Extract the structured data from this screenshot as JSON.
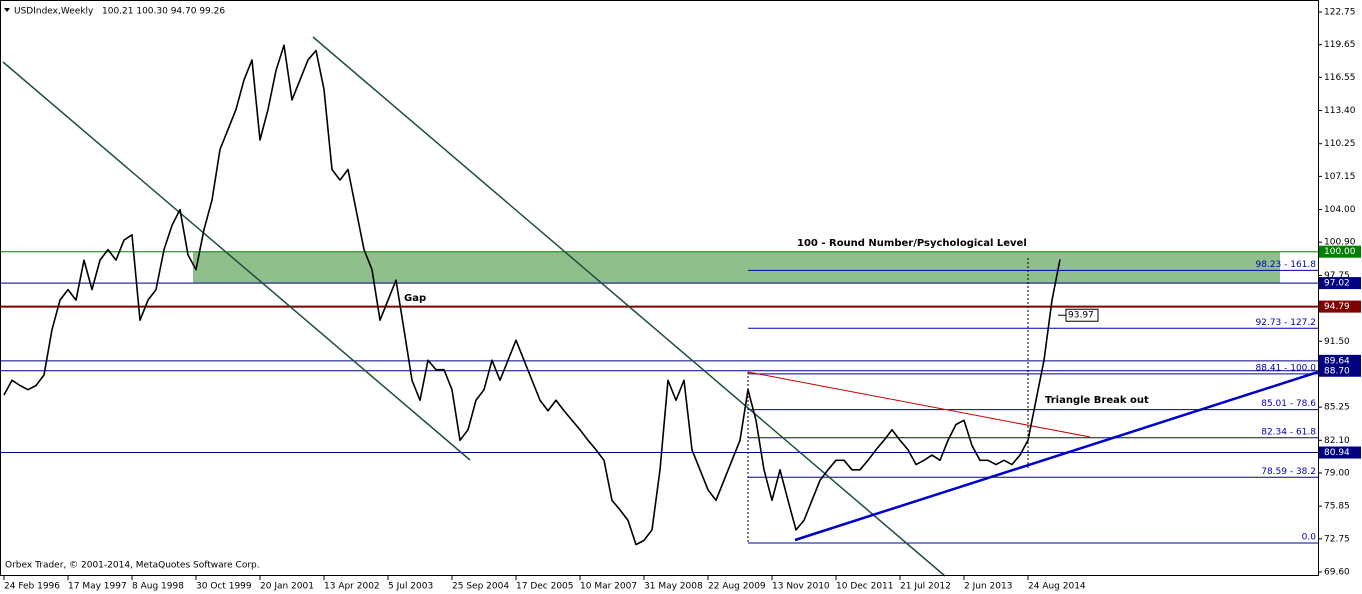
{
  "chart_data": {
    "type": "line",
    "header_title": "USDIndex,Weekly",
    "header_prices": "100.21 100.30 94.70 99.26",
    "footer": "Orbex Trader, © 2001-2014, MetaQuotes Software Corp.",
    "color": "#000000",
    "categories": [
      "24 Feb 1996",
      null,
      null,
      null,
      null,
      null,
      null,
      null,
      "17 May 1997",
      null,
      null,
      null,
      null,
      null,
      null,
      null,
      "8 Aug 1998",
      null,
      null,
      null,
      null,
      null,
      null,
      null,
      "30 Oct 1999",
      null,
      null,
      null,
      null,
      null,
      null,
      null,
      "20 Jan 2001",
      null,
      null,
      null,
      null,
      null,
      null,
      null,
      "13 Apr 2002",
      null,
      null,
      null,
      null,
      null,
      null,
      null,
      "5 Jul 2003",
      null,
      null,
      null,
      null,
      null,
      null,
      null,
      "25 Sep 2004",
      null,
      null,
      null,
      null,
      null,
      null,
      null,
      "17 Dec 2005",
      null,
      null,
      null,
      null,
      null,
      null,
      null,
      "10 Mar 2007",
      null,
      null,
      null,
      null,
      null,
      null,
      null,
      "31 May 2008",
      null,
      null,
      null,
      null,
      null,
      null,
      null,
      "22 Aug 2009",
      null,
      null,
      null,
      null,
      null,
      null,
      null,
      "13 Nov 2010",
      null,
      null,
      null,
      null,
      null,
      null,
      null,
      "10 Dec 2011",
      null,
      null,
      null,
      null,
      null,
      null,
      null,
      "21 Jul 2012",
      null,
      null,
      null,
      null,
      null,
      null,
      null,
      "2 Jun 2013",
      null,
      null,
      null,
      null,
      null,
      null,
      null,
      "24 Aug 2014",
      null,
      null,
      null,
      null
    ],
    "values": [
      86.4,
      87.8,
      87.3,
      86.9,
      87.3,
      88.3,
      92.6,
      95.4,
      96.4,
      95.4,
      99.2,
      96.4,
      99.2,
      100.2,
      99.2,
      101.1,
      101.6,
      93.5,
      95.4,
      96.4,
      100.2,
      102.5,
      104.0,
      99.7,
      98.3,
      102.1,
      104.9,
      109.7,
      111.6,
      113.5,
      116.3,
      118.2,
      110.6,
      113.5,
      117.2,
      119.6,
      114.4,
      116.3,
      118.2,
      119.1,
      115.4,
      107.8,
      106.8,
      107.8,
      104.0,
      100.2,
      98.3,
      93.5,
      95.4,
      97.3,
      92.6,
      87.8,
      85.9,
      89.7,
      88.8,
      88.8,
      86.9,
      82.1,
      83.1,
      85.9,
      86.9,
      89.7,
      87.8,
      89.7,
      91.6,
      89.7,
      87.8,
      85.9,
      84.9,
      85.9,
      84.9,
      84.0,
      83.1,
      82.1,
      81.2,
      80.2,
      76.4,
      75.5,
      74.5,
      72.2,
      72.6,
      73.6,
      79.3,
      87.8,
      85.9,
      87.8,
      81.2,
      79.3,
      77.4,
      76.4,
      78.3,
      80.2,
      82.1,
      86.9,
      84.0,
      79.3,
      76.4,
      79.3,
      76.4,
      73.6,
      74.5,
      76.4,
      78.3,
      79.3,
      80.2,
      80.2,
      79.3,
      79.3,
      80.2,
      81.2,
      82.1,
      83.1,
      82.1,
      81.2,
      79.8,
      80.2,
      80.7,
      80.2,
      82.1,
      83.6,
      84.0,
      81.6,
      80.2,
      80.2,
      79.8,
      80.2,
      79.8,
      80.7,
      82.1,
      85.9,
      89.7,
      95.4,
      99.26
    ],
    "ylim": [
      69.6,
      122.75
    ],
    "yticks": [
      122.75,
      119.65,
      116.55,
      {
        "value": 113.4,
        "label": "113.40"
      },
      110.25,
      107.15,
      {
        "value": 104,
        "label": "104.00"
      },
      {
        "value": 100.9,
        "label": "100.90"
      },
      97.75,
      {
        "value": 91.5,
        "label": "91.50"
      },
      85.25,
      {
        "value": 82.1,
        "label": "82.10"
      },
      {
        "value": 79,
        "label": "79.00"
      },
      75.85,
      72.75,
      {
        "value": 69.6,
        "label": "69.60"
      }
    ],
    "price_levels": [
      {
        "value": 100,
        "label": "100.00",
        "color": "#008000"
      },
      {
        "value": 97.02,
        "label": "97.02",
        "color": "#000080"
      },
      {
        "value": 94.79,
        "label": "94.79",
        "color": "#800000"
      },
      {
        "value": 89.64,
        "label": "89.64",
        "color": "#000080"
      },
      {
        "value": 88.7,
        "label": "88.70",
        "color": "#000080"
      },
      {
        "value": 80.94,
        "label": "80.94",
        "color": "#000080"
      }
    ],
    "fib_levels": [
      {
        "value": 98.23,
        "label": "98.23 - 161.8"
      },
      {
        "value": 92.73,
        "label": "92.73 - 127.2"
      },
      {
        "value": 88.41,
        "label": "88.41 - 100.0"
      },
      {
        "value": 85.01,
        "label": "85.01 - 78.6"
      },
      {
        "value": 82.34,
        "label": "82.34 - 61.8"
      },
      {
        "value": 78.59,
        "label": "78.59 - 38.2"
      },
      {
        "value": 72.35,
        "label": "0.0"
      }
    ],
    "zone": [
      97.02,
      100
    ],
    "price_callout": 93.97,
    "annotations": [
      "100 - Round Number/Psychological Level",
      "Gap",
      "Triangle Break out"
    ]
  }
}
